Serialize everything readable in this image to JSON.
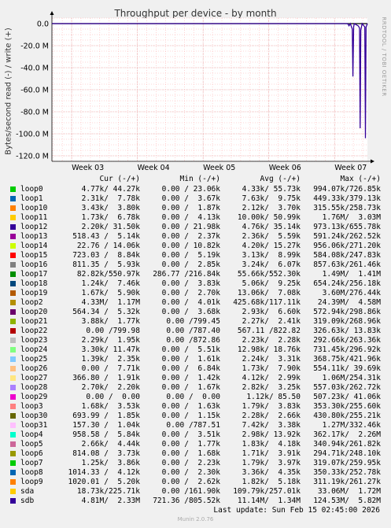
{
  "title": "Throughput per device - by month",
  "vertical_label": "Bytes/second read (-) / write (+)",
  "watermark": "RRDTOOL / TOBI OETIKER",
  "legend_headers": {
    "cur": "Cur (-/+)",
    "min": "Min (-/+)",
    "avg": "Avg (-/+)",
    "max": "Max (-/+)"
  },
  "colors": {
    "background": "#f0f0f0",
    "plot": "#ffffff",
    "grid_minor": "#ffaaaa",
    "zero_line": "#000000",
    "series": "#330099"
  },
  "chart_data": {
    "type": "line",
    "title": "Throughput per device - by month",
    "ylabel": "Bytes/second read (-) / write (+)",
    "ylim": [
      -125,
      5
    ],
    "y_unit": "M",
    "y_ticks": [
      {
        "value": 0,
        "label": "0.0"
      },
      {
        "value": -20,
        "label": "-20.0 M"
      },
      {
        "value": -40,
        "label": "-40.0 M"
      },
      {
        "value": -60,
        "label": "-60.0 M"
      },
      {
        "value": -80,
        "label": "-80.0 M"
      },
      {
        "value": -100,
        "label": "-100.0 M"
      },
      {
        "value": -120,
        "label": "-120.0 M"
      }
    ],
    "x_ticks": [
      "Week 03",
      "Week 04",
      "Week 05",
      "Week 06",
      "Week 07"
    ],
    "x_range_weeks": [
      2.7,
      7.5
    ],
    "grid": true,
    "series": [
      {
        "name": "sdb",
        "points": [
          [
            2.7,
            0
          ],
          [
            7.2,
            0
          ],
          [
            7.22,
            -2
          ],
          [
            7.24,
            0
          ],
          [
            7.27,
            -5
          ],
          [
            7.28,
            -48
          ],
          [
            7.29,
            -3
          ],
          [
            7.3,
            0
          ],
          [
            7.36,
            -2
          ],
          [
            7.38,
            -4
          ],
          [
            7.39,
            -95
          ],
          [
            7.4,
            -6
          ],
          [
            7.42,
            0
          ],
          [
            7.46,
            -3
          ],
          [
            7.47,
            -104
          ],
          [
            7.48,
            -3
          ],
          [
            7.5,
            0
          ]
        ]
      }
    ]
  },
  "legend": [
    {
      "name": "loop0",
      "color": "#00cc00",
      "cur": "4.77k/ 44.27k",
      "min": "0.00 / 23.06k",
      "avg": "4.33k/ 55.73k",
      "max": "994.07k/726.85k"
    },
    {
      "name": "loop1",
      "color": "#0066b3",
      "cur": "2.31k/  7.78k",
      "min": "0.00 /  3.67k",
      "avg": "7.63k/  9.75k",
      "max": "449.33k/379.13k"
    },
    {
      "name": "loop10",
      "color": "#ff8000",
      "cur": "3.43k/  3.80k",
      "min": "0.00 /  1.87k",
      "avg": "2.12k/  3.70k",
      "max": "315.55k/258.73k"
    },
    {
      "name": "loop11",
      "color": "#ffcc00",
      "cur": "1.73k/  6.78k",
      "min": "0.00 /  4.13k",
      "avg": "10.00k/ 50.99k",
      "max": "1.76M/  3.03M"
    },
    {
      "name": "loop12",
      "color": "#330099",
      "cur": "2.20k/ 31.50k",
      "min": "0.00 / 21.98k",
      "avg": "4.76k/ 35.14k",
      "max": "973.13k/655.78k"
    },
    {
      "name": "loop13",
      "color": "#990099",
      "cur": "518.43 /  5.14k",
      "min": "0.00 /  2.37k",
      "avg": "2.36k/  5.59k",
      "max": "591.24k/262.52k"
    },
    {
      "name": "loop14",
      "color": "#ccff00",
      "cur": "22.76 / 14.06k",
      "min": "0.00 / 10.82k",
      "avg": "4.20k/ 15.27k",
      "max": "956.06k/271.20k"
    },
    {
      "name": "loop15",
      "color": "#ff0000",
      "cur": "723.03 /  8.84k",
      "min": "0.00 /  5.19k",
      "avg": "3.13k/  8.99k",
      "max": "584.08k/247.83k"
    },
    {
      "name": "loop16",
      "color": "#808080",
      "cur": "811.35 /  5.93k",
      "min": "0.00 /  2.85k",
      "avg": "3.24k/  6.07k",
      "max": "857.63k/261.46k"
    },
    {
      "name": "loop17",
      "color": "#008f00",
      "cur": "82.82k/550.97k",
      "min": "286.77 /216.84k",
      "avg": "55.66k/552.30k",
      "max": "1.49M/  1.41M"
    },
    {
      "name": "loop18",
      "color": "#00487d",
      "cur": "1.24k/  7.46k",
      "min": "0.00 /  3.83k",
      "avg": "5.06k/  9.25k",
      "max": "654.24k/256.18k"
    },
    {
      "name": "loop19",
      "color": "#b35a00",
      "cur": "1.67k/  5.90k",
      "min": "0.00 /  2.70k",
      "avg": "13.06k/  7.08k",
      "max": "3.60M/276.44k"
    },
    {
      "name": "loop2",
      "color": "#b38f00",
      "cur": "4.33M/  1.17M",
      "min": "0.00 /  4.01k",
      "avg": "425.68k/117.11k",
      "max": "24.39M/  4.58M"
    },
    {
      "name": "loop20",
      "color": "#6b006b",
      "cur": "564.34 /  5.32k",
      "min": "0.00 /  3.68k",
      "avg": "2.93k/  6.60k",
      "max": "572.94k/298.86k"
    },
    {
      "name": "loop21",
      "color": "#8fb300",
      "cur": "3.88k/  1.77k",
      "min": "0.00 /799.45",
      "avg": "2.27k/  2.41k",
      "max": "319.09k/268.96k"
    },
    {
      "name": "loop22",
      "color": "#b30000",
      "cur": "0.00 /799.98",
      "min": "0.00 /787.40",
      "avg": "567.11 /822.82",
      "max": "326.63k/ 13.83k"
    },
    {
      "name": "loop23",
      "color": "#bebebe",
      "cur": "2.29k/  1.95k",
      "min": "0.00 /872.86",
      "avg": "2.23k/  2.28k",
      "max": "292.66k/263.36k"
    },
    {
      "name": "loop24",
      "color": "#80ff80",
      "cur": "3.30k/ 11.47k",
      "min": "0.00 /  5.51k",
      "avg": "12.98k/ 18.76k",
      "max": "731.45k/296.92k"
    },
    {
      "name": "loop25",
      "color": "#80c9ff",
      "cur": "1.39k/  2.35k",
      "min": "0.00 /  1.61k",
      "avg": "2.24k/  3.31k",
      "max": "368.75k/421.96k"
    },
    {
      "name": "loop26",
      "color": "#ffc080",
      "cur": "0.00 /  7.71k",
      "min": "0.00 /  6.84k",
      "avg": "1.73k/  7.90k",
      "max": "554.11k/ 39.69k"
    },
    {
      "name": "loop27",
      "color": "#ffe680",
      "cur": "366.80 /  1.91k",
      "min": "0.00 /  1.42k",
      "avg": "4.12k/  2.99k",
      "max": "1.06M/254.31k"
    },
    {
      "name": "loop28",
      "color": "#aa80ff",
      "cur": "2.70k/  2.20k",
      "min": "0.00 /  1.67k",
      "avg": "2.82k/  3.25k",
      "max": "557.03k/262.72k"
    },
    {
      "name": "loop29",
      "color": "#ee00cc",
      "cur": "0.00 /  0.00",
      "min": "0.00 /  0.00",
      "avg": "1.12k/ 85.50",
      "max": "507.23k/ 41.06k"
    },
    {
      "name": "loop3",
      "color": "#ff8080",
      "cur": "1.68k/  3.53k",
      "min": "0.00 /  1.63k",
      "avg": "1.79k/  3.83k",
      "max": "353.30k/255.60k"
    },
    {
      "name": "loop30",
      "color": "#666600",
      "cur": "693.99 /  1.85k",
      "min": "0.00 /  1.15k",
      "avg": "2.28k/  2.66k",
      "max": "430.80k/255.21k"
    },
    {
      "name": "loop31",
      "color": "#ffbfff",
      "cur": "157.30 /  1.04k",
      "min": "0.00 /787.51",
      "avg": "7.42k/  3.38k",
      "max": "1.27M/332.46k"
    },
    {
      "name": "loop4",
      "color": "#00ffcc",
      "cur": "958.58 /  5.84k",
      "min": "0.00 /  3.51k",
      "avg": "2.98k/ 13.92k",
      "max": "362.17k/  2.26M"
    },
    {
      "name": "loop5",
      "color": "#cc6699",
      "cur": "2.66k/  4.44k",
      "min": "0.00 /  1.77k",
      "avg": "1.83k/  4.18k",
      "max": "340.94k/261.82k"
    },
    {
      "name": "loop6",
      "color": "#999900",
      "cur": "814.08 /  3.73k",
      "min": "0.00 /  1.68k",
      "avg": "1.71k/  3.91k",
      "max": "294.71k/248.10k"
    },
    {
      "name": "loop7",
      "color": "#00cc00",
      "cur": "1.25k/  3.86k",
      "min": "0.00 /  2.23k",
      "avg": "1.79k/  3.97k",
      "max": "319.07k/259.95k"
    },
    {
      "name": "loop8",
      "color": "#0066b3",
      "cur": "1014.33 /  4.12k",
      "min": "0.00 /  2.30k",
      "avg": "3.36k/  4.35k",
      "max": "350.33k/252.78k"
    },
    {
      "name": "loop9",
      "color": "#ff8000",
      "cur": "1020.01 /  5.20k",
      "min": "0.00 /  2.62k",
      "avg": "1.82k/  5.18k",
      "max": "311.19k/261.27k"
    },
    {
      "name": "sda",
      "color": "#ffcc00",
      "cur": "18.73k/225.71k",
      "min": "0.00 /161.90k",
      "avg": "109.79k/257.01k",
      "max": "33.06M/  1.72M"
    },
    {
      "name": "sdb",
      "color": "#330099",
      "cur": "4.81M/  2.33M",
      "min": "721.36 /805.52k",
      "avg": "11.14M/  1.34M",
      "max": "124.53M/  5.82M"
    }
  ],
  "footer": "Last update: Sun Feb 15 02:45:00 2026",
  "munin_version": "Munin 2.0.76"
}
